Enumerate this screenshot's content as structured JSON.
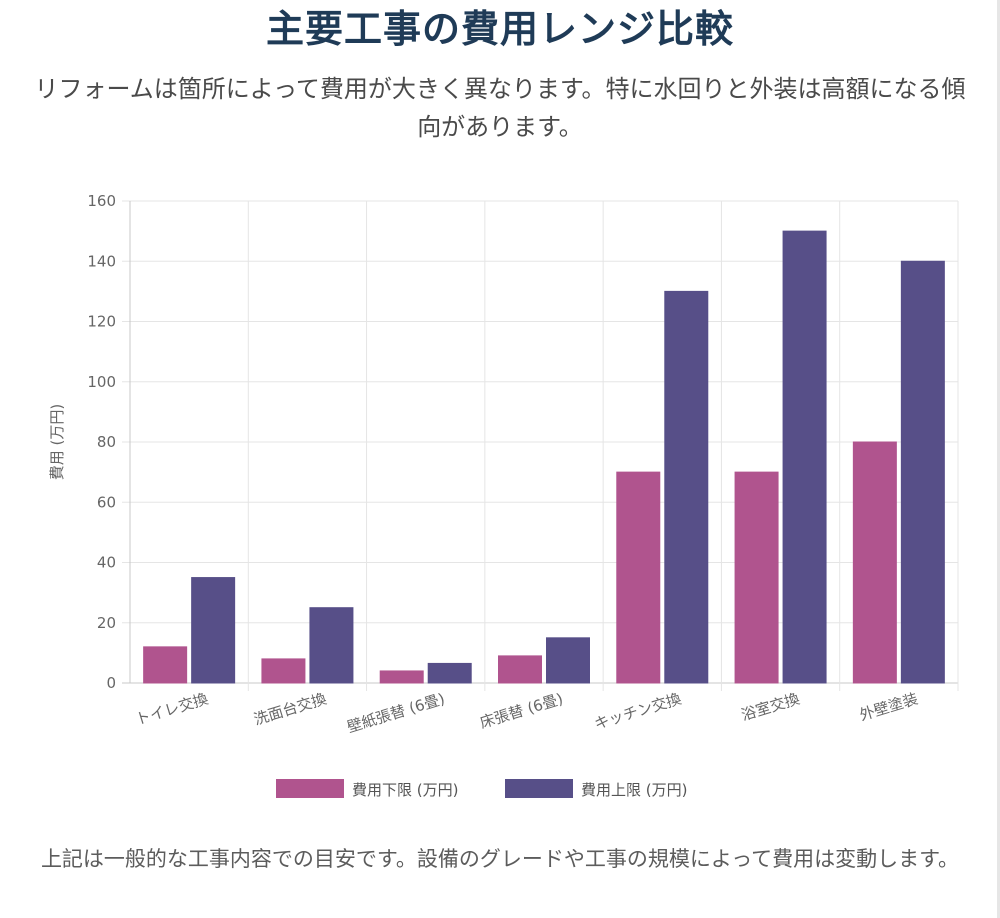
{
  "page": {
    "title": "主要工事の費用レンジ比較",
    "subtitle": "リフォームは箇所によって費用が大きく異なります。特に水回りと外装は高額になる傾向があります。",
    "footnote": "上記は一般的な工事内容での目安です。設備のグレードや工事の規模によって費用は変動します。"
  },
  "chart_data": {
    "type": "bar",
    "categories": [
      "トイレ交換",
      "洗面台交換",
      "壁紙張替 (6畳)",
      "床張替 (6畳)",
      "キッチン交換",
      "浴室交換",
      "外壁塗装"
    ],
    "series": [
      {
        "name": "費用下限 (万円)",
        "color": "#b0548e",
        "values": [
          12,
          8,
          4,
          9,
          70,
          70,
          80
        ]
      },
      {
        "name": "費用上限 (万円)",
        "color": "#574f88",
        "values": [
          35,
          25,
          6.5,
          15,
          130,
          150,
          140
        ]
      }
    ],
    "ylabel": "費用 (万円)",
    "xlabel": "",
    "ylim": [
      0,
      160
    ],
    "yticks": [
      0,
      20,
      40,
      60,
      80,
      100,
      120,
      140,
      160
    ],
    "grid": true,
    "legend_position": "bottom"
  }
}
